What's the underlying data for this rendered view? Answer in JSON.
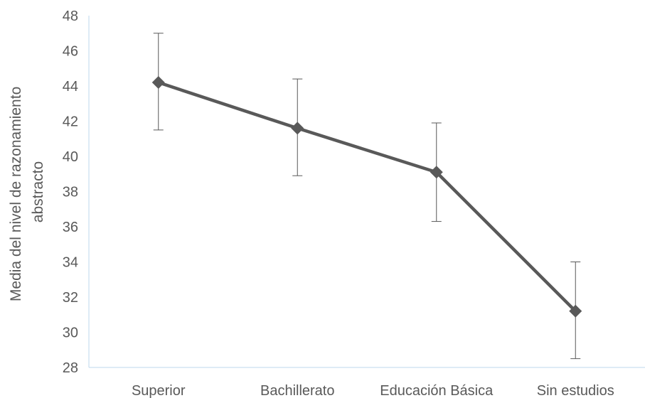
{
  "chart_data": {
    "type": "line",
    "title": "",
    "xlabel": "",
    "ylabel_lines": [
      "Media del nivel de razonamiento",
      "abstracto"
    ],
    "categories": [
      "Superior",
      "Bachillerato",
      "Educación Básica",
      "Sin estudios"
    ],
    "series": [
      {
        "values": [
          44.2,
          41.6,
          39.1,
          31.2
        ],
        "error_low": [
          41.5,
          38.9,
          36.3,
          28.5
        ],
        "error_high": [
          47.0,
          44.4,
          41.9,
          34.0
        ],
        "color": "#595959",
        "marker": "diamond"
      }
    ],
    "ylim": [
      28,
      48
    ],
    "yticks": [
      "28",
      "30",
      "32",
      "34",
      "36",
      "38",
      "40",
      "42",
      "44",
      "46",
      "48"
    ],
    "grid": false,
    "legend": "none"
  }
}
